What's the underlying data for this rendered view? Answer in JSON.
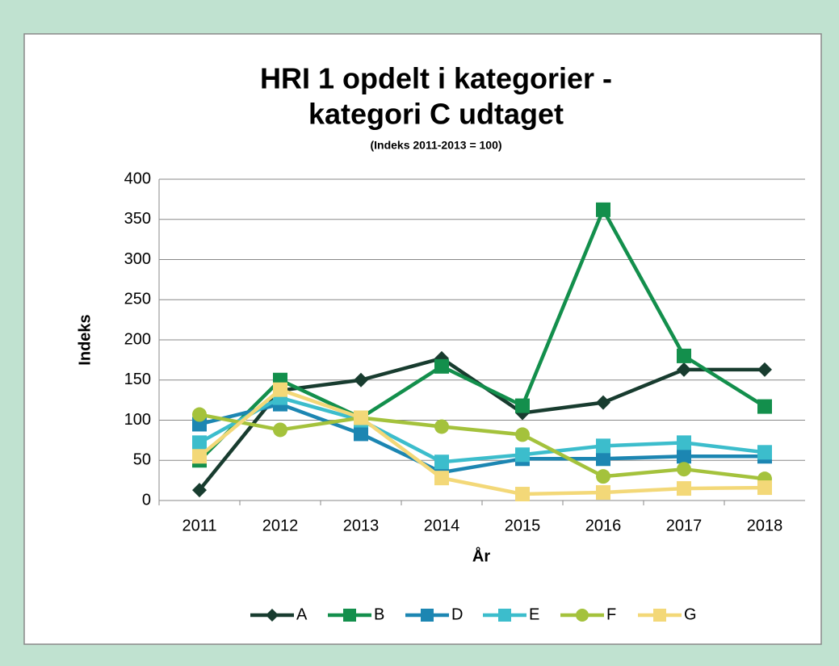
{
  "chart_data": {
    "type": "line",
    "title": [
      "HRI 1 opdelt i kategorier -",
      "kategori C udtaget"
    ],
    "subtitle": "(Indeks 2011-2013 = 100)",
    "x_label": "År",
    "y_label": "Indeks",
    "categories": [
      "2011",
      "2012",
      "2013",
      "2014",
      "2015",
      "2016",
      "2017",
      "2018"
    ],
    "series": [
      {
        "name": "A",
        "color": "#183c2f",
        "marker": "diamond",
        "values": [
          13,
          137,
          150,
          177,
          109,
          122,
          163,
          163
        ]
      },
      {
        "name": "B",
        "color": "#138f4c",
        "marker": "square",
        "values": [
          50,
          150,
          103,
          167,
          118,
          362,
          180,
          117
        ]
      },
      {
        "name": "D",
        "color": "#1c86b2",
        "marker": "square",
        "values": [
          95,
          120,
          83,
          35,
          52,
          52,
          55,
          55
        ]
      },
      {
        "name": "E",
        "color": "#3cbdcc",
        "marker": "square",
        "values": [
          72,
          128,
          100,
          48,
          57,
          68,
          72,
          60
        ]
      },
      {
        "name": "F",
        "color": "#a4c23c",
        "marker": "circle",
        "values": [
          107,
          88,
          103,
          92,
          82,
          30,
          39,
          27
        ]
      },
      {
        "name": "G",
        "color": "#f3d878",
        "marker": "square",
        "values": [
          55,
          138,
          103,
          28,
          8,
          10,
          15,
          16
        ]
      }
    ],
    "ylim": [
      0,
      400
    ],
    "yticks": [
      0,
      50,
      100,
      150,
      200,
      250,
      300,
      350,
      400
    ],
    "grid": true,
    "legend": "bottom"
  }
}
